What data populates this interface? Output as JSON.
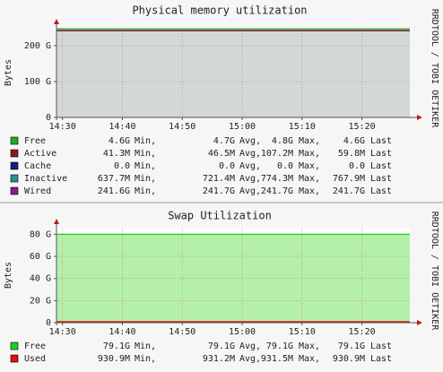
{
  "chart_data": [
    {
      "type": "area",
      "title": "Physical memory utilization",
      "y_label": "Bytes",
      "watermark": "RRDTOOL / TOBI OETIKER",
      "x": [
        869,
        928
      ],
      "xlim": [
        869,
        928
      ],
      "xticks": [
        {
          "value": 870,
          "label": "14:30"
        },
        {
          "value": 880,
          "label": "14:40"
        },
        {
          "value": 890,
          "label": "14:50"
        },
        {
          "value": 900,
          "label": "15:00"
        },
        {
          "value": 910,
          "label": "15:10"
        },
        {
          "value": 920,
          "label": "15:20"
        }
      ],
      "ylim": [
        0,
        250
      ],
      "yticks": [
        0,
        {
          "value": 100,
          "label": "100 G"
        },
        {
          "value": 200,
          "label": "200 G"
        }
      ],
      "grid": true,
      "stat_labels": [
        "Min,",
        "Avg,",
        "Max,",
        "Last"
      ],
      "series": [
        {
          "name": "Free",
          "color": "#22aa22",
          "values": [
            4.7,
            4.7
          ],
          "stats": [
            "4.6G",
            "4.7G",
            "4.8G",
            "4.6G"
          ]
        },
        {
          "name": "Active",
          "color": "#8b1a1a",
          "values": [
            0.0465,
            0.0465
          ],
          "stats": [
            "41.3M",
            "46.5M",
            "107.2M",
            "59.8M"
          ]
        },
        {
          "name": "Cache",
          "color": "#1a1a8b",
          "values": [
            0,
            0
          ],
          "stats": [
            "0.0",
            "0.0",
            "0.0",
            "0.0"
          ]
        },
        {
          "name": "Inactive",
          "color": "#2a8f8f",
          "values": [
            0.7214,
            0.7214
          ],
          "stats": [
            "637.7M",
            "721.4M",
            "774.3M",
            "767.9M"
          ]
        },
        {
          "name": "Wired",
          "color": "#8b1a8b",
          "fill": "#d2d8d5",
          "values": [
            241.7,
            241.7
          ],
          "stats": [
            "241.6G",
            "241.7G",
            "241.7G",
            "241.7G"
          ]
        }
      ]
    },
    {
      "type": "area",
      "title": "Swap Utilization",
      "y_label": "Bytes",
      "watermark": "RRDTOOL / TOBI OETIKER",
      "x": [
        869,
        928
      ],
      "xlim": [
        869,
        928
      ],
      "xticks": [
        {
          "value": 870,
          "label": "14:30"
        },
        {
          "value": 880,
          "label": "14:40"
        },
        {
          "value": 890,
          "label": "14:50"
        },
        {
          "value": 900,
          "label": "15:00"
        },
        {
          "value": 910,
          "label": "15:10"
        },
        {
          "value": 920,
          "label": "15:20"
        }
      ],
      "ylim": [
        0,
        86
      ],
      "yticks": [
        0,
        {
          "value": 20,
          "label": "20 G"
        },
        {
          "value": 40,
          "label": "40 G"
        },
        {
          "value": 60,
          "label": "60 G"
        },
        {
          "value": 80,
          "label": "80 G"
        }
      ],
      "grid": true,
      "stat_labels": [
        "Min,",
        "Avg,",
        "Max,",
        "Last"
      ],
      "series": [
        {
          "name": "Free",
          "color": "#22cc22",
          "fill": "#b4f0a8",
          "values": [
            79.1,
            79.1
          ],
          "stats": [
            "79.1G",
            "79.1G",
            "79.1G",
            "79.1G"
          ]
        },
        {
          "name": "Used",
          "color": "#dd1111",
          "values": [
            0.9312,
            0.9312
          ],
          "stats": [
            "930.9M",
            "931.2M",
            "931.5M",
            "930.9M"
          ]
        }
      ]
    }
  ]
}
